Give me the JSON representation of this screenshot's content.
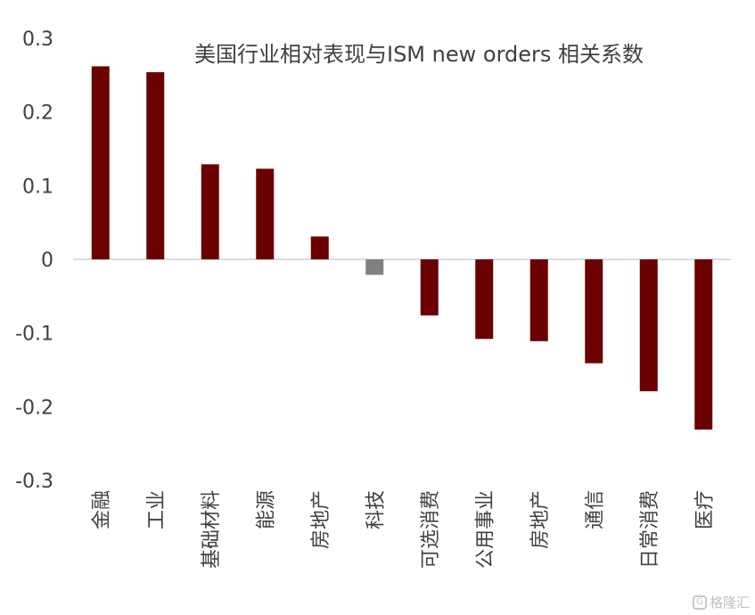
{
  "chart_data": {
    "type": "bar",
    "title": "美国行业相对表现与ISM new orders 相关系数",
    "categories": [
      "金融",
      "工业",
      "基础材料",
      "能源",
      "房地产",
      "科技",
      "可选消费",
      "公用事业",
      "房地产",
      "通信",
      "日常消费",
      "医疗"
    ],
    "values": [
      0.262,
      0.254,
      0.129,
      0.123,
      0.031,
      -0.021,
      -0.076,
      -0.108,
      -0.111,
      -0.141,
      -0.179,
      -0.231
    ],
    "bar_colors": [
      "#6b0000",
      "#6b0000",
      "#6b0000",
      "#6b0000",
      "#6b0000",
      "#808080",
      "#6b0000",
      "#6b0000",
      "#6b0000",
      "#6b0000",
      "#6b0000",
      "#6b0000"
    ],
    "ylim": [
      -0.3,
      0.3
    ],
    "yticks": [
      "0.3",
      "0.2",
      "0.1",
      "0",
      "-0.1",
      "-0.2",
      "-0.3"
    ],
    "ytick_values": [
      0.3,
      0.2,
      0.1,
      0,
      -0.1,
      -0.2,
      -0.3
    ],
    "xlabel": "",
    "ylabel": "",
    "grid": false,
    "legend": "none"
  },
  "watermark": {
    "icon": "G",
    "text": "格隆汇"
  }
}
